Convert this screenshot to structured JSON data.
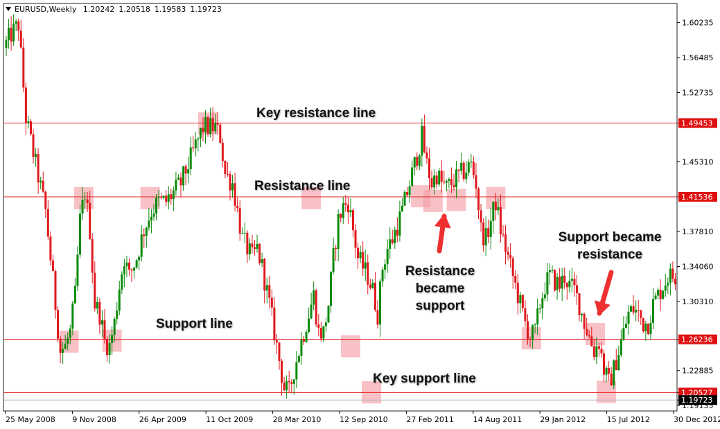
{
  "header": {
    "symbol": "EURUSD,Weekly",
    "open": "1.20242",
    "high": "1.20518",
    "low": "1.19583",
    "close": "1.19723"
  },
  "colors": {
    "bull": "#0a8a0a",
    "bear": "#e0181c",
    "level_line": "#e02020",
    "highlight": "#f4a0a8",
    "arrow": "#ee3030",
    "grid_border": "#222222",
    "price_tag": "#e01010",
    "current_tag": "#000000"
  },
  "annotations": {
    "key_resistance": "Key resistance line",
    "resistance": "Resistance line",
    "support": "Support line",
    "key_support": "Key support line",
    "resistance_became_support": [
      "Resistance",
      "became",
      "support"
    ],
    "support_became_resistance": [
      "Support became",
      "resistance"
    ]
  },
  "chart_data": {
    "type": "candlestick",
    "ylim": [
      1.1855,
      1.6229
    ],
    "y_ticks": [
      "1.60235",
      "1.56485",
      "1.52735",
      "1.49453",
      "1.45310",
      "1.41536",
      "1.37810",
      "1.34060",
      "1.30310",
      "1.26236",
      "1.22885",
      "1.20527",
      "1.19723",
      "1.19135"
    ],
    "x_ticks": [
      "25 May 2008",
      "9 Nov 2008",
      "26 Apr 2009",
      "11 Oct 2009",
      "28 Mar 2010",
      "12 Sep 2010",
      "27 Feb 2011",
      "14 Aug 2011",
      "29 Jan 2012",
      "15 Jul 2012",
      "30 Dec 2012"
    ],
    "levels": [
      {
        "value": 1.49453,
        "label": "1.49453"
      },
      {
        "value": 1.41536,
        "label": "1.41536"
      },
      {
        "value": 1.26236,
        "label": "1.26236"
      },
      {
        "value": 1.20527,
        "label": "1.20527"
      }
    ],
    "current_price": {
      "value": 1.19723,
      "label": "1.19723"
    },
    "highlights": [
      {
        "week": 25.5,
        "price": 1.26
      },
      {
        "week": 43,
        "price": 1.261
      },
      {
        "week": 31.5,
        "price": 1.414
      },
      {
        "week": 58.5,
        "price": 1.414
      },
      {
        "week": 82,
        "price": 1.494
      },
      {
        "week": 124,
        "price": 1.414
      },
      {
        "week": 140,
        "price": 1.255
      },
      {
        "week": 148.5,
        "price": 1.2055
      },
      {
        "week": 168.5,
        "price": 1.416
      },
      {
        "week": 173.5,
        "price": 1.411
      },
      {
        "week": 183,
        "price": 1.412
      },
      {
        "week": 199,
        "price": 1.414
      },
      {
        "week": 213.5,
        "price": 1.2635
      },
      {
        "week": 239.5,
        "price": 1.268
      },
      {
        "week": 244,
        "price": 1.206
      }
    ],
    "anchors": [
      [
        0,
        1.575
      ],
      [
        3,
        1.59
      ],
      [
        6,
        1.6
      ],
      [
        9,
        1.5
      ],
      [
        13,
        1.45
      ],
      [
        17,
        1.4
      ],
      [
        21,
        1.3
      ],
      [
        23,
        1.25
      ],
      [
        25,
        1.255
      ],
      [
        27,
        1.27
      ],
      [
        29,
        1.31
      ],
      [
        31,
        1.39
      ],
      [
        33,
        1.42
      ],
      [
        35,
        1.38
      ],
      [
        37,
        1.3
      ],
      [
        39,
        1.29
      ],
      [
        41,
        1.26
      ],
      [
        43,
        1.255
      ],
      [
        45,
        1.28
      ],
      [
        47,
        1.32
      ],
      [
        49,
        1.35
      ],
      [
        51,
        1.33
      ],
      [
        54,
        1.35
      ],
      [
        57,
        1.38
      ],
      [
        60,
        1.4
      ],
      [
        63,
        1.41
      ],
      [
        66,
        1.41
      ],
      [
        69,
        1.42
      ],
      [
        72,
        1.43
      ],
      [
        75,
        1.45
      ],
      [
        78,
        1.47
      ],
      [
        81,
        1.49
      ],
      [
        84,
        1.49
      ],
      [
        86,
        1.49
      ],
      [
        88,
        1.48
      ],
      [
        90,
        1.44
      ],
      [
        93,
        1.43
      ],
      [
        95,
        1.4
      ],
      [
        97,
        1.37
      ],
      [
        99,
        1.36
      ],
      [
        101,
        1.35
      ],
      [
        103,
        1.36
      ],
      [
        105,
        1.34
      ],
      [
        108,
        1.3
      ],
      [
        110,
        1.27
      ],
      [
        112,
        1.24
      ],
      [
        114,
        1.21
      ],
      [
        116,
        1.205
      ],
      [
        118,
        1.23
      ],
      [
        120,
        1.25
      ],
      [
        123,
        1.28
      ],
      [
        126,
        1.31
      ],
      [
        128,
        1.27
      ],
      [
        130,
        1.27
      ],
      [
        132,
        1.3
      ],
      [
        134,
        1.35
      ],
      [
        136,
        1.39
      ],
      [
        138,
        1.405
      ],
      [
        140,
        1.41
      ],
      [
        142,
        1.38
      ],
      [
        144,
        1.35
      ],
      [
        146,
        1.34
      ],
      [
        148,
        1.33
      ],
      [
        150,
        1.315
      ],
      [
        152,
        1.29
      ],
      [
        154,
        1.34
      ],
      [
        156,
        1.36
      ],
      [
        158,
        1.37
      ],
      [
        160,
        1.385
      ],
      [
        162,
        1.4
      ],
      [
        164,
        1.42
      ],
      [
        166,
        1.44
      ],
      [
        168,
        1.46
      ],
      [
        170,
        1.48
      ],
      [
        172,
        1.45
      ],
      [
        174,
        1.43
      ],
      [
        176,
        1.44
      ],
      [
        178,
        1.43
      ],
      [
        180,
        1.425
      ],
      [
        182,
        1.43
      ],
      [
        184,
        1.435
      ],
      [
        186,
        1.44
      ],
      [
        188,
        1.445
      ],
      [
        190,
        1.45
      ],
      [
        192,
        1.43
      ],
      [
        194,
        1.38
      ],
      [
        196,
        1.37
      ],
      [
        198,
        1.39
      ],
      [
        200,
        1.41
      ],
      [
        202,
        1.38
      ],
      [
        204,
        1.36
      ],
      [
        206,
        1.34
      ],
      [
        208,
        1.32
      ],
      [
        210,
        1.3
      ],
      [
        212,
        1.28
      ],
      [
        214,
        1.265
      ],
      [
        216,
        1.27
      ],
      [
        218,
        1.3
      ],
      [
        220,
        1.32
      ],
      [
        222,
        1.33
      ],
      [
        224,
        1.325
      ],
      [
        226,
        1.32
      ],
      [
        228,
        1.33
      ],
      [
        230,
        1.32
      ],
      [
        232,
        1.315
      ],
      [
        234,
        1.3
      ],
      [
        236,
        1.28
      ],
      [
        238,
        1.265
      ],
      [
        240,
        1.25
      ],
      [
        242,
        1.26
      ],
      [
        244,
        1.23
      ],
      [
        246,
        1.215
      ],
      [
        248,
        1.23
      ],
      [
        250,
        1.25
      ],
      [
        252,
        1.27
      ],
      [
        254,
        1.29
      ],
      [
        256,
        1.295
      ],
      [
        258,
        1.29
      ],
      [
        260,
        1.28
      ],
      [
        262,
        1.28
      ],
      [
        264,
        1.3
      ],
      [
        266,
        1.31
      ],
      [
        268,
        1.32
      ],
      [
        270,
        1.33
      ],
      [
        272,
        1.33
      ]
    ]
  }
}
